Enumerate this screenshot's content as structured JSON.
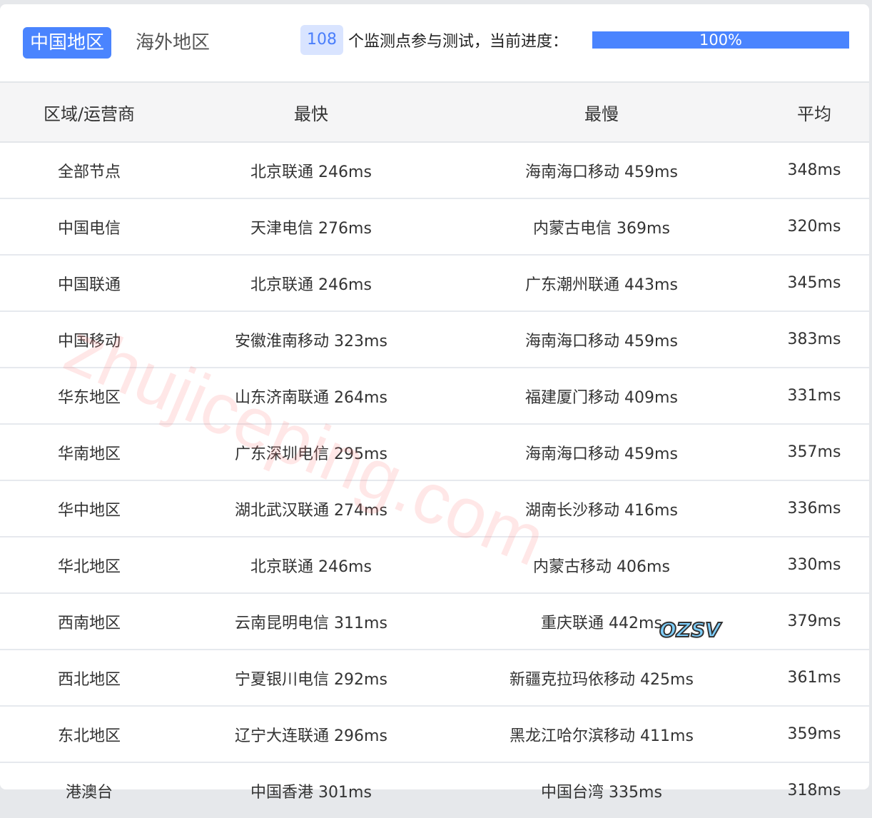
{
  "tabs": {
    "active": "中国地区",
    "other": "海外地区"
  },
  "progress": {
    "count": "108",
    "text": "个监测点参与测试，当前进度：",
    "percent_label": "100%",
    "percent": 100,
    "color": "#4a84fe"
  },
  "table": {
    "headers": [
      "区域/运营商",
      "最快",
      "最慢",
      "平均"
    ],
    "rows": [
      [
        "全部节点",
        "北京联通 246ms",
        "海南海口移动 459ms",
        "348ms"
      ],
      [
        "中国电信",
        "天津电信 276ms",
        "内蒙古电信 369ms",
        "320ms"
      ],
      [
        "中国联通",
        "北京联通 246ms",
        "广东潮州联通 443ms",
        "345ms"
      ],
      [
        "中国移动",
        "安徽淮南移动 323ms",
        "海南海口移动 459ms",
        "383ms"
      ],
      [
        "华东地区",
        "山东济南联通 264ms",
        "福建厦门移动 409ms",
        "331ms"
      ],
      [
        "华南地区",
        "广东深圳电信 295ms",
        "海南海口移动 459ms",
        "357ms"
      ],
      [
        "华中地区",
        "湖北武汉联通 274ms",
        "湖南长沙移动 416ms",
        "336ms"
      ],
      [
        "华北地区",
        "北京联通 246ms",
        "内蒙古移动 406ms",
        "330ms"
      ],
      [
        "西南地区",
        "云南昆明电信 311ms",
        "重庆联通 442ms",
        "379ms"
      ],
      [
        "西北地区",
        "宁夏银川电信 292ms",
        "新疆克拉玛依移动 425ms",
        "361ms"
      ],
      [
        "东北地区",
        "辽宁大连联通 296ms",
        "黑龙江哈尔滨移动 411ms",
        "359ms"
      ],
      [
        "港澳台",
        "中国香港 301ms",
        "中国台湾 335ms",
        "318ms"
      ]
    ]
  },
  "watermark": "zhujiceping.com",
  "logo": "OZSV"
}
